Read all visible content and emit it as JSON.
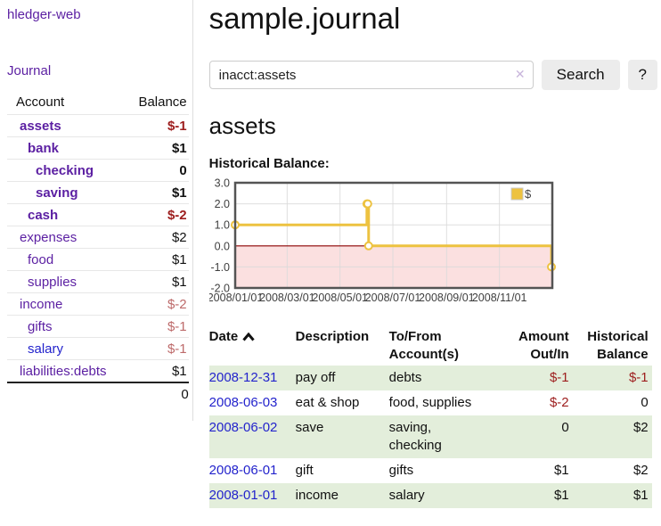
{
  "colors": {
    "link_purple": "#5b1fa2",
    "link_blue": "#2323cc",
    "negative_strong": "#9d1d1d",
    "negative_soft": "#bd6a6a",
    "row_green": "#e3eedb",
    "series_gold": "#edc240",
    "chart_negative_fill": "#fbe0e0",
    "chart_zero_line": "#8b0000",
    "chart_frame": "#545454"
  },
  "sidebar": {
    "app_title": "hledger-web",
    "journal_link": "Journal",
    "accounts_header": {
      "account": "Account",
      "balance": "Balance"
    },
    "accounts": [
      {
        "name": "assets",
        "depth": 1,
        "balance": "$-1",
        "bold": true,
        "neg": "strong"
      },
      {
        "name": "bank",
        "depth": 2,
        "balance": "$1",
        "bold": true,
        "neg": "none"
      },
      {
        "name": "checking",
        "depth": 3,
        "balance": "0",
        "bold": true,
        "neg": "none"
      },
      {
        "name": "saving",
        "depth": 3,
        "balance": "$1",
        "bold": true,
        "neg": "none"
      },
      {
        "name": "cash",
        "depth": 2,
        "balance": "$-2",
        "bold": true,
        "neg": "strong"
      },
      {
        "name": "expenses",
        "depth": 1,
        "balance": "$2",
        "bold": false,
        "neg": "none"
      },
      {
        "name": "food",
        "depth": 2,
        "balance": "$1",
        "bold": false,
        "neg": "none"
      },
      {
        "name": "supplies",
        "depth": 2,
        "balance": "$1",
        "bold": false,
        "neg": "none"
      },
      {
        "name": "income",
        "depth": 1,
        "balance": "$-2",
        "bold": false,
        "neg": "soft"
      },
      {
        "name": "gifts",
        "depth": 2,
        "balance": "$-1",
        "bold": false,
        "neg": "soft"
      },
      {
        "name": "salary",
        "depth": 2,
        "balance": "$-1",
        "bold": false,
        "neg": "soft",
        "link_color": "blue"
      },
      {
        "name": "liabilities:debts",
        "depth": 1,
        "balance": "$1",
        "bold": false,
        "neg": "none"
      }
    ],
    "total": "0"
  },
  "header": {
    "title": "sample.journal"
  },
  "search": {
    "value": "inacct:assets",
    "clear_icon": "✕",
    "button": "Search",
    "help_button": "?"
  },
  "main": {
    "account_heading": "assets",
    "chart_label": "Historical Balance:"
  },
  "chart_data": {
    "type": "line",
    "title": "Historical Balance",
    "step": true,
    "legend": [
      {
        "label": "$",
        "color": "#edc240"
      }
    ],
    "legend_position": "top-right",
    "ylim": [
      -2,
      3
    ],
    "yticks": [
      3.0,
      2.0,
      1.0,
      0.0,
      -1.0,
      -2.0
    ],
    "x_range_days": [
      0,
      366
    ],
    "xticks": [
      {
        "day": 0,
        "label": "2008/01/01"
      },
      {
        "day": 60,
        "label": "2008/03/01"
      },
      {
        "day": 121,
        "label": "2008/05/01"
      },
      {
        "day": 182,
        "label": "2008/07/01"
      },
      {
        "day": 244,
        "label": "2008/09/01"
      },
      {
        "day": 305,
        "label": "2008/11/01"
      }
    ],
    "points": [
      {
        "date": "2008-01-01",
        "day": 0,
        "value": 1
      },
      {
        "date": "2008-06-01",
        "day": 152,
        "value": 2
      },
      {
        "date": "2008-06-02",
        "day": 153,
        "value": 2
      },
      {
        "date": "2008-06-03",
        "day": 154,
        "value": 0
      },
      {
        "date": "2008-12-31",
        "day": 365,
        "value": -1
      }
    ],
    "grid": true,
    "negative_fill": "#fbe0e0",
    "zero_line_color": "#8b0000",
    "series_color": "#edc240"
  },
  "register": {
    "columns": [
      {
        "label": "Date",
        "align": "left",
        "sorted": "asc"
      },
      {
        "label": "Description",
        "align": "left"
      },
      {
        "label": "To/From Account(s)",
        "align": "left"
      },
      {
        "label": "Amount Out/In",
        "align": "right"
      },
      {
        "label": "Historical Balance",
        "align": "right"
      }
    ],
    "rows": [
      {
        "date": "2008-12-31",
        "description": "pay off",
        "accounts": "debts",
        "amount": "$-1",
        "amount_negative": true,
        "balance": "$-1",
        "balance_negative": true
      },
      {
        "date": "2008-06-03",
        "description": "eat & shop",
        "accounts": "food, supplies",
        "amount": "$-2",
        "amount_negative": true,
        "balance": "0",
        "balance_negative": false
      },
      {
        "date": "2008-06-02",
        "description": "save",
        "accounts": "saving, checking",
        "amount": "0",
        "amount_negative": false,
        "balance": "$2",
        "balance_negative": false
      },
      {
        "date": "2008-06-01",
        "description": "gift",
        "accounts": "gifts",
        "amount": "$1",
        "amount_negative": false,
        "balance": "$2",
        "balance_negative": false
      },
      {
        "date": "2008-01-01",
        "description": "income",
        "accounts": "salary",
        "amount": "$1",
        "amount_negative": false,
        "balance": "$1",
        "balance_negative": false
      }
    ]
  }
}
